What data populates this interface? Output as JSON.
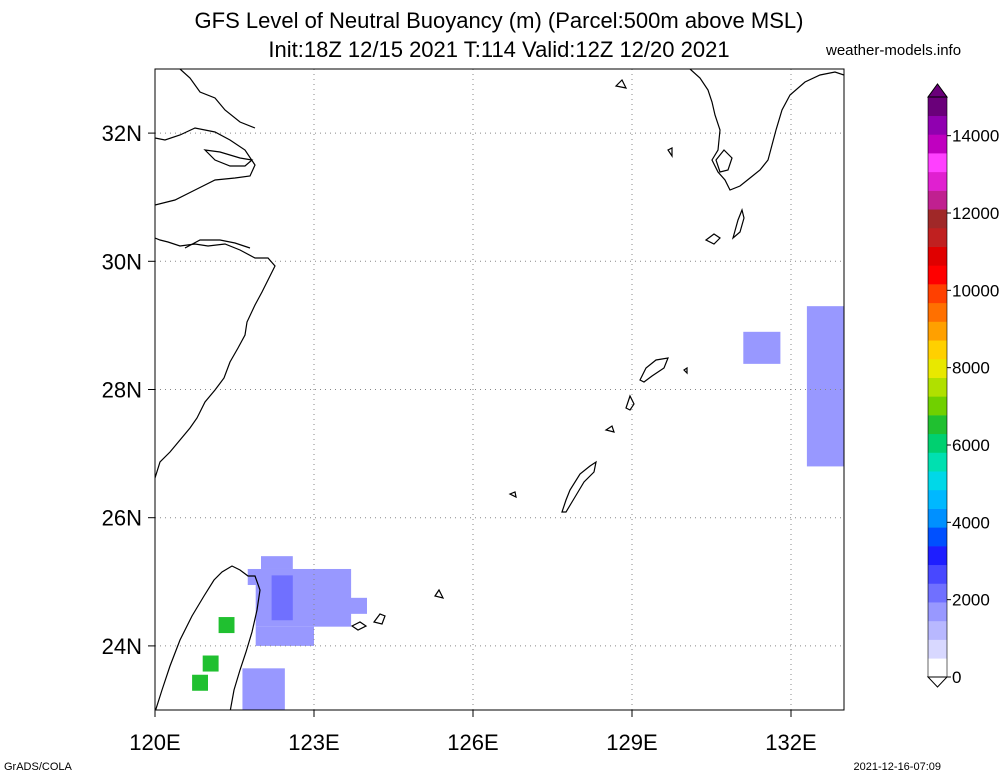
{
  "title_line1": "GFS Level of Neutral Buoyancy (m) (Parcel:500m above MSL)",
  "title_line2": "Init:18Z 12/15 2021 T:114 Valid:12Z 12/20 2021",
  "site": "weather-models.info",
  "footer_left": "GrADS/COLA",
  "footer_right": "2021-12-16-07:09",
  "map": {
    "lon_range": [
      120,
      133
    ],
    "lat_range": [
      23,
      33
    ],
    "lon_ticks": [
      {
        "value": 120,
        "label": "120E"
      },
      {
        "value": 123,
        "label": "123E"
      },
      {
        "value": 126,
        "label": "126E"
      },
      {
        "value": 129,
        "label": "129E"
      },
      {
        "value": 132,
        "label": "132E"
      }
    ],
    "lat_ticks": [
      {
        "value": 24,
        "label": "24N"
      },
      {
        "value": 26,
        "label": "26N"
      },
      {
        "value": 28,
        "label": "28N"
      },
      {
        "value": 30,
        "label": "30N"
      },
      {
        "value": 32,
        "label": "32N"
      }
    ],
    "grid": "dotted"
  },
  "colorbar": {
    "min": 0,
    "max": 15000,
    "labels": [
      "0",
      "2000",
      "4000",
      "6000",
      "8000",
      "10000",
      "12000",
      "14000"
    ],
    "colors": [
      "#ffffff",
      "#d8d8ff",
      "#b8b8ff",
      "#9898ff",
      "#7070ff",
      "#4848ff",
      "#1e1eff",
      "#0050ff",
      "#0090ff",
      "#00b8ff",
      "#00d8e8",
      "#00e0b0",
      "#00d070",
      "#20c030",
      "#70d000",
      "#b0e000",
      "#e8e800",
      "#ffd000",
      "#ffa000",
      "#ff7000",
      "#ff4000",
      "#ff0000",
      "#e00000",
      "#c02020",
      "#a02828",
      "#c02090",
      "#e020d0",
      "#ff40ff",
      "#c000c0",
      "#9000b0",
      "#6a007a"
    ]
  },
  "fields": [
    {
      "lon": [
        122.0,
        122.6
      ],
      "lat": [
        25.2,
        25.4
      ],
      "value": 1700
    },
    {
      "lon": [
        121.75,
        123.7
      ],
      "lat": [
        24.95,
        25.2
      ],
      "value": 1700
    },
    {
      "lon": [
        121.9,
        123.7
      ],
      "lat": [
        24.3,
        24.95
      ],
      "value": 1700
    },
    {
      "lon": [
        123.0,
        124.0
      ],
      "lat": [
        24.5,
        24.75
      ],
      "value": 1700
    },
    {
      "lon": [
        121.9,
        123.0
      ],
      "lat": [
        24.0,
        24.3
      ],
      "value": 1700
    },
    {
      "lon": [
        122.2,
        122.6
      ],
      "lat": [
        24.4,
        25.1
      ],
      "value": 2400
    },
    {
      "lon": [
        121.65,
        122.45
      ],
      "lat": [
        23.0,
        23.65
      ],
      "value": 1800
    },
    {
      "lon": [
        131.1,
        131.8
      ],
      "lat": [
        28.4,
        28.9
      ],
      "value": 1800
    },
    {
      "lon": [
        132.3,
        133.0
      ],
      "lat": [
        26.8,
        29.3
      ],
      "value": 1800
    },
    {
      "lon": [
        121.2,
        121.5
      ],
      "lat": [
        24.2,
        24.45
      ],
      "value": 6500
    },
    {
      "lon": [
        120.9,
        121.2
      ],
      "lat": [
        23.6,
        23.85
      ],
      "value": 6500
    },
    {
      "lon": [
        120.7,
        121.0
      ],
      "lat": [
        23.3,
        23.55
      ],
      "value": 6500
    }
  ]
}
